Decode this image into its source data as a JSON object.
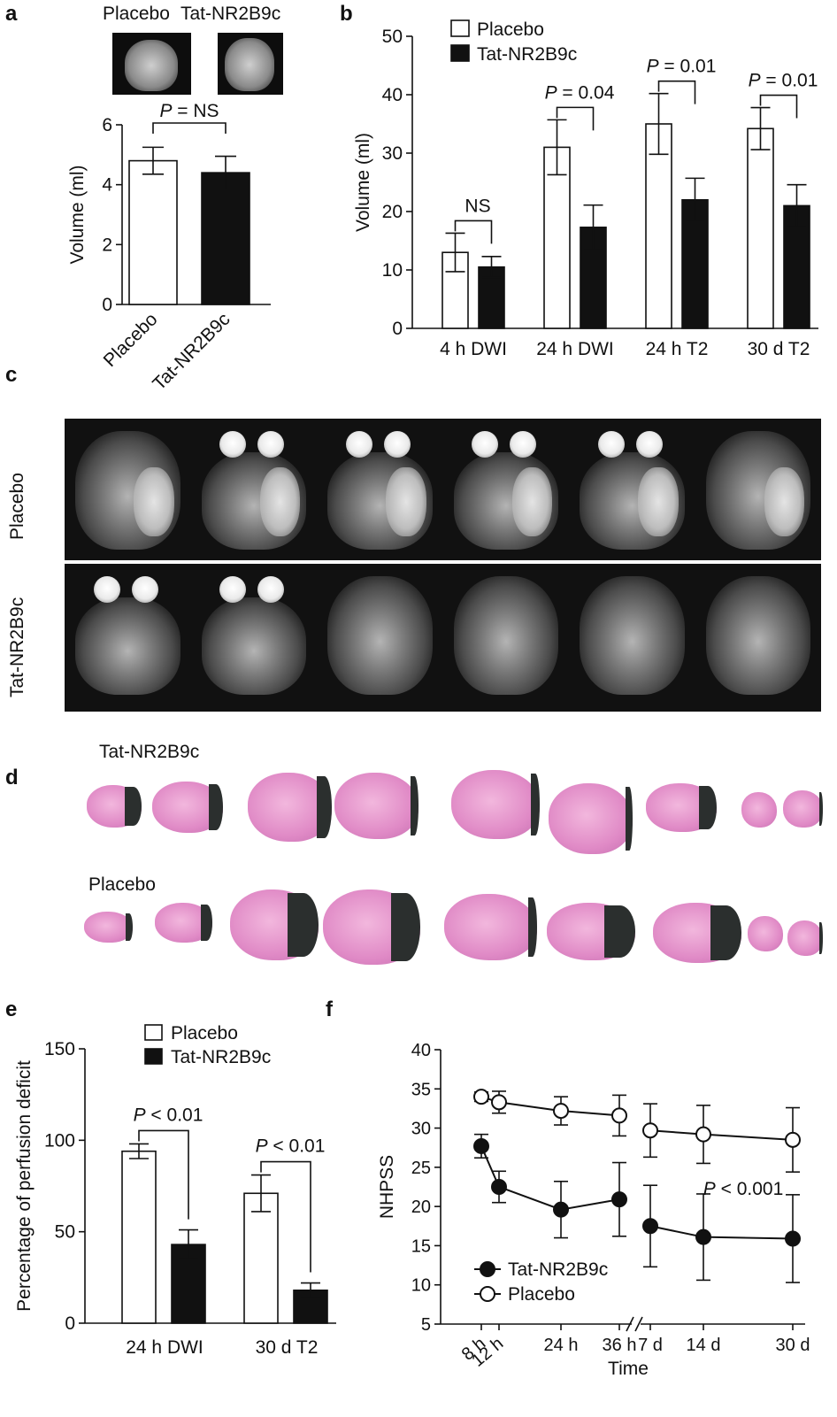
{
  "panel_letters": {
    "a": "a",
    "b": "b",
    "c": "c",
    "d": "d",
    "e": "e",
    "f": "f"
  },
  "panel_c_labels": {
    "row1": "Placebo",
    "row2": "Tat-NR2B9c"
  },
  "panel_d_labels": {
    "row1": "Tat-NR2B9c",
    "row2": "Placebo"
  },
  "panel_a_images": {
    "left_label": "Placebo",
    "right_label": "Tat-NR2B9c"
  },
  "chart_data": [
    {
      "id": "a",
      "type": "bar",
      "ylabel": "Volume (ml)",
      "ylim": [
        0,
        6
      ],
      "yticks": [
        0,
        2,
        4,
        6
      ],
      "categories": [
        "Placebo",
        "Tat-NR2B9c"
      ],
      "values": [
        4.8,
        4.4
      ],
      "errors": [
        0.45,
        0.55
      ],
      "bar_colors": [
        "#ffffff",
        "#111111"
      ],
      "annotations": [
        {
          "text_italic": "P",
          "text": " = NS",
          "between": [
            0,
            1
          ]
        }
      ]
    },
    {
      "id": "b",
      "type": "bar",
      "ylabel": "Volume (ml)",
      "ylim": [
        0,
        50
      ],
      "yticks": [
        0,
        10,
        20,
        30,
        40,
        50
      ],
      "categories": [
        "4 h DWI",
        "24 h DWI",
        "24 h T2",
        "30 d T2"
      ],
      "series": [
        {
          "name": "Placebo",
          "color": "#ffffff",
          "values": [
            13,
            31,
            35,
            34.2
          ],
          "errors": [
            3.3,
            4.7,
            5.2,
            3.6
          ]
        },
        {
          "name": "Tat-NR2B9c",
          "color": "#111111",
          "values": [
            10.5,
            17.3,
            22,
            21
          ],
          "errors": [
            1.8,
            3.8,
            3.7,
            3.6
          ]
        }
      ],
      "annotations": [
        {
          "text_italic": "",
          "text": "NS",
          "group": 0
        },
        {
          "text_italic": "P",
          "text": " = 0.04",
          "group": 1
        },
        {
          "text_italic": "P",
          "text": " = 0.01",
          "group": 2
        },
        {
          "text_italic": "P",
          "text": " = 0.01",
          "group": 3
        }
      ],
      "legend": "top-left"
    },
    {
      "id": "e",
      "type": "bar",
      "ylabel": "Percentage of perfusion deficit",
      "ylim": [
        0,
        150
      ],
      "yticks": [
        0,
        50,
        100,
        150
      ],
      "categories": [
        "24 h DWI",
        "30 d T2"
      ],
      "series": [
        {
          "name": "Placebo",
          "color": "#ffffff",
          "values": [
            94,
            71
          ],
          "errors": [
            4,
            10
          ]
        },
        {
          "name": "Tat-NR2B9c",
          "color": "#111111",
          "values": [
            43,
            18
          ],
          "errors": [
            8,
            4
          ]
        }
      ],
      "annotations": [
        {
          "text_italic": "P",
          "text": " < 0.01",
          "group": 0
        },
        {
          "text_italic": "P",
          "text": " < 0.01",
          "group": 1
        }
      ],
      "legend": "top"
    },
    {
      "id": "f",
      "type": "line",
      "ylabel": "NHPSS",
      "xlabel": "Time",
      "ylim": [
        5,
        40
      ],
      "yticks": [
        5,
        10,
        15,
        20,
        25,
        30,
        35,
        40
      ],
      "xticks": [
        "8 h",
        "12 h",
        "24 h",
        "36 h",
        "7 d",
        "14 d",
        "30 d"
      ],
      "series": [
        {
          "name": "Tat-NR2B9c",
          "marker": "filled",
          "x": [
            "8 h",
            "12 h",
            "24 h",
            "36 h",
            "7 d",
            "14 d",
            "30 d"
          ],
          "values": [
            27.7,
            22.5,
            19.6,
            20.9,
            17.5,
            16.1,
            15.9
          ],
          "errors": [
            1.5,
            2,
            3.6,
            4.7,
            5.2,
            5.5,
            5.6
          ]
        },
        {
          "name": "Placebo",
          "marker": "open",
          "x": [
            "8 h",
            "12 h",
            "24 h",
            "36 h",
            "7 d",
            "14 d",
            "30 d"
          ],
          "values": [
            34,
            33.3,
            32.2,
            31.6,
            29.7,
            29.2,
            28.5
          ],
          "errors": [
            0.6,
            1.4,
            1.8,
            2.6,
            3.4,
            3.7,
            4.1
          ]
        }
      ],
      "annotations": [
        {
          "text_italic": "P",
          "text": " < 0.001"
        }
      ],
      "legend": "bottom-left",
      "axis_break": true
    }
  ]
}
